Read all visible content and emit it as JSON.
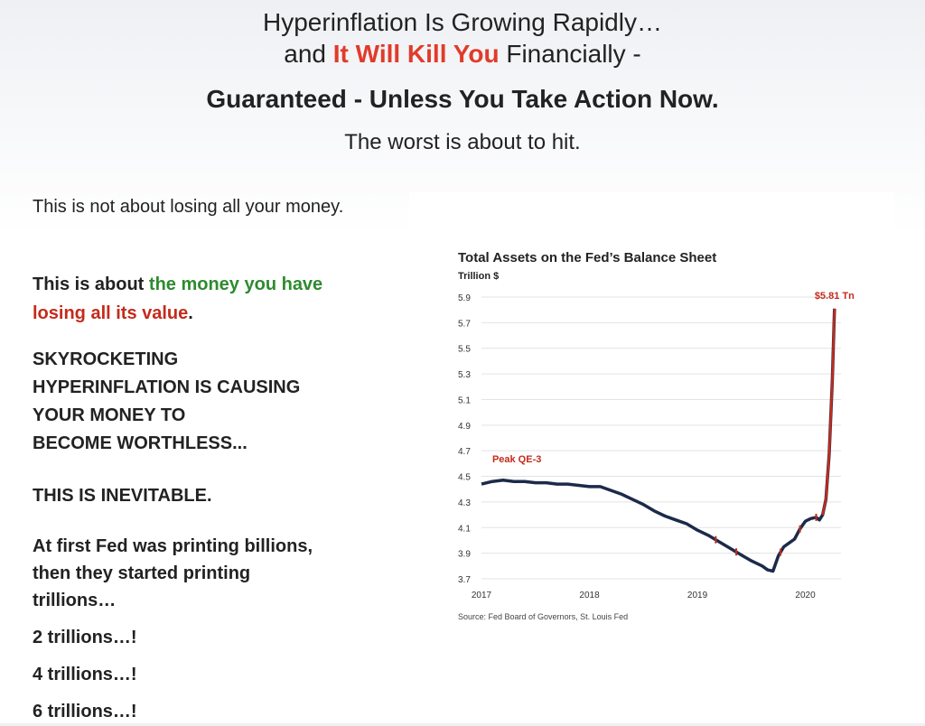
{
  "headline": {
    "line1": "Hyperinflation Is Growing Rapidly…",
    "line2_prefix": "and ",
    "line2_emphasis": "It Will Kill You",
    "line2_suffix": " Financially -",
    "line3": "Guaranteed - Unless You Take Action Now.",
    "line4": "The worst is about to hit."
  },
  "body": {
    "p1": "This is not about losing all your money.",
    "p2_prefix": "This is about ",
    "p2_green": "the money you have",
    "p2_red": "losing all its value",
    "p2_suffix": ".",
    "p3_line1": "SKYROCKETING",
    "p3_line2": "HYPERINFLATION IS CAUSING",
    "p3_line3": "YOUR MONEY TO",
    "p3_line4": "BECOME WORTHLESS...",
    "p4": "THIS IS INEVITABLE.",
    "p5_line1": "At first Fed was printing billions,",
    "p5_line2": "then they started printing",
    "p5_line3": "trillions…",
    "p6": "2 trillions…!",
    "p7": "4 trillions…!",
    "p8": "6 trillions…!"
  },
  "chart_data": {
    "type": "line",
    "title": "Total Assets on the Fed’s Balance Sheet",
    "ylabel": "Trillion $",
    "source": "Source: Fed Board of Governors, St. Louis Fed",
    "x_ticks": [
      "2017",
      "2018",
      "2019",
      "2020"
    ],
    "y_ticks": [
      3.7,
      3.9,
      4.1,
      4.3,
      4.5,
      4.7,
      4.9,
      5.1,
      5.3,
      5.5,
      5.7,
      5.9
    ],
    "ylim": [
      3.7,
      5.9
    ],
    "xlim": [
      2017.0,
      2020.33
    ],
    "grid": true,
    "annotations": [
      {
        "text": "Peak QE-3",
        "x": 2017.1,
        "y": 4.44,
        "color": "#c42b1c"
      },
      {
        "text": "$5.81 Tn",
        "x": 2020.27,
        "y": 5.81,
        "color": "#c42b1c"
      }
    ],
    "series": [
      {
        "line_color": "#1c2a4a",
        "highlight_color": "#c42b1c",
        "x": [
          2017.0,
          2017.1,
          2017.2,
          2017.3,
          2017.4,
          2017.5,
          2017.6,
          2017.7,
          2017.8,
          2017.9,
          2018.0,
          2018.1,
          2018.2,
          2018.3,
          2018.4,
          2018.5,
          2018.6,
          2018.7,
          2018.8,
          2018.9,
          2019.0,
          2019.1,
          2019.2,
          2019.3,
          2019.4,
          2019.5,
          2019.6,
          2019.65,
          2019.7,
          2019.75,
          2019.8,
          2019.85,
          2019.9,
          2019.95,
          2020.0,
          2020.05,
          2020.1,
          2020.13,
          2020.16,
          2020.19,
          2020.22,
          2020.25,
          2020.27
        ],
        "values": [
          4.44,
          4.46,
          4.47,
          4.46,
          4.46,
          4.45,
          4.45,
          4.44,
          4.44,
          4.43,
          4.42,
          4.42,
          4.39,
          4.36,
          4.32,
          4.28,
          4.23,
          4.19,
          4.16,
          4.13,
          4.08,
          4.04,
          3.99,
          3.94,
          3.89,
          3.84,
          3.8,
          3.77,
          3.76,
          3.88,
          3.95,
          3.98,
          4.01,
          4.09,
          4.15,
          4.17,
          4.18,
          4.16,
          4.2,
          4.32,
          4.67,
          5.25,
          5.81
        ]
      }
    ]
  }
}
